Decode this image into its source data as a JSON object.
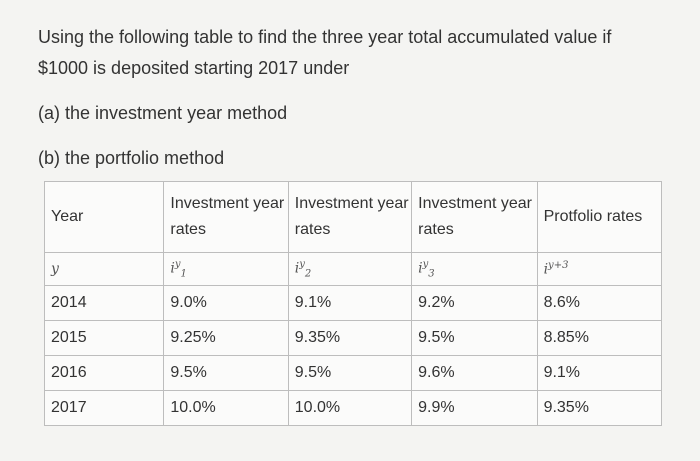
{
  "question": {
    "line1": "Using the following table to find the three year total accumulated value if",
    "line2": "$1000 is deposited starting 2017 under",
    "part_a": "(a) the investment year method",
    "part_b": "(b) the portfolio method"
  },
  "table": {
    "headers": {
      "year": "Year",
      "i1": "Investment year rates",
      "i2": "Investment year rates",
      "i3": "Investment year rates",
      "portfolio": "Protfolio rates"
    },
    "symbols": {
      "year": "y",
      "i1_base": "i",
      "i1_sup": "y",
      "i1_sub": "1",
      "i2_base": "i",
      "i2_sup": "y",
      "i2_sub": "2",
      "i3_base": "i",
      "i3_sup": "y",
      "i3_sub": "3",
      "p_base": "i",
      "p_sup": "y+3"
    },
    "rows": [
      {
        "year": "2014",
        "i1": "9.0%",
        "i2": "9.1%",
        "i3": "9.2%",
        "p": "8.6%"
      },
      {
        "year": "2015",
        "i1": "9.25%",
        "i2": "9.35%",
        "i3": "9.5%",
        "p": "8.85%"
      },
      {
        "year": "2016",
        "i1": "9.5%",
        "i2": "9.5%",
        "i3": "9.6%",
        "p": "9.1%"
      },
      {
        "year": "2017",
        "i1": "10.0%",
        "i2": "10.0%",
        "i3": "9.9%",
        "p": "9.35%"
      }
    ]
  }
}
